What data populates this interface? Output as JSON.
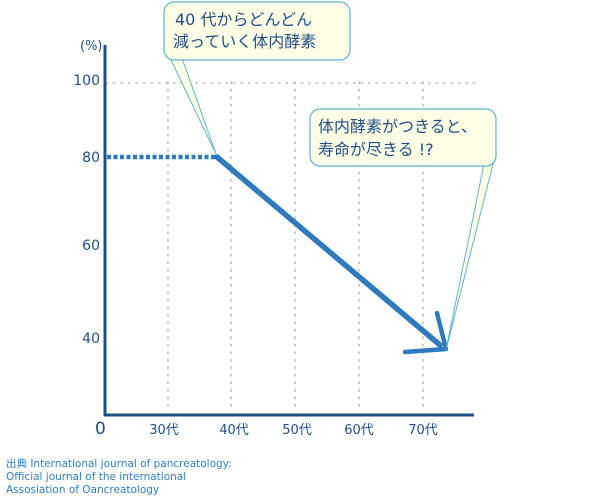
{
  "chart_data": {
    "type": "line",
    "y_unit": "(%)",
    "origin_label": "0",
    "y_ticks": [
      100,
      80,
      60,
      40
    ],
    "y_tick_labels": [
      "100",
      "80",
      "60",
      "40"
    ],
    "x_tick_labels": [
      "30代",
      "40代",
      "50代",
      "60代",
      "70代"
    ],
    "gridlines": "dotted",
    "series": [
      {
        "points": [
          {
            "x": "0",
            "y": 80
          },
          {
            "x": "40代",
            "y": 80
          },
          {
            "x": "70代",
            "y": 40
          }
        ]
      }
    ],
    "annotations": [
      {
        "lines": [
          "40 代からどんどん",
          "減っていく体内酵素"
        ]
      },
      {
        "lines": [
          "体内酵素がつきると、",
          "寿命が尽きる !?"
        ]
      }
    ],
    "colors": {
      "axis": "#1f4f84",
      "line": "#2d7ac0",
      "grid": "#bdbdbd",
      "callout_fill": "#ffffe6",
      "callout_stroke": "#5fb2d4",
      "text": "#1f4f84",
      "source_text": "#2f7fc4"
    }
  },
  "source": {
    "lines": [
      "出典 International journal of pancreatology:",
      "Official journal of the international",
      "Assosiation of Oancreatology"
    ]
  }
}
